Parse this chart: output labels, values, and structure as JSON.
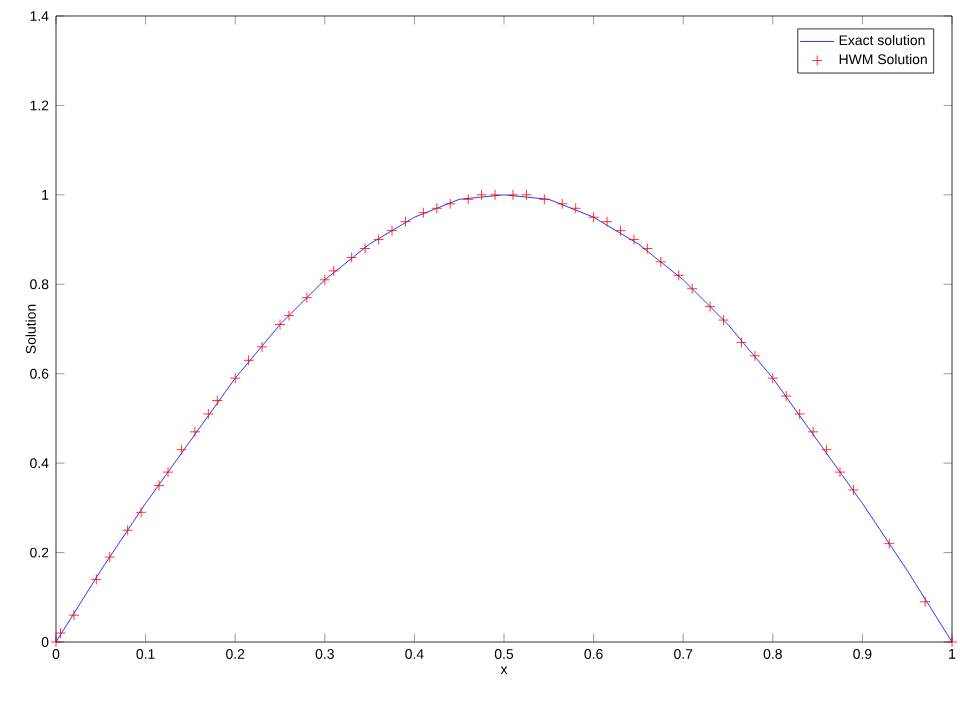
{
  "chart_data": {
    "type": "line",
    "xlabel": "x",
    "ylabel": "Solution",
    "xlim": [
      0,
      1
    ],
    "ylim": [
      0,
      1.4
    ],
    "xticks": [
      0,
      0.1,
      0.2,
      0.3,
      0.4,
      0.5,
      0.6,
      0.7,
      0.8,
      0.9,
      1
    ],
    "yticks": [
      0,
      0.2,
      0.4,
      0.6,
      0.8,
      1,
      1.2,
      1.4
    ],
    "legend": "top right",
    "grid": false,
    "series": [
      {
        "name": "Exact solution",
        "color": "#0000ff",
        "marker": "none",
        "line_style": "solid",
        "x": [
          0,
          0.05,
          0.1,
          0.15,
          0.2,
          0.25,
          0.3,
          0.35,
          0.4,
          0.45,
          0.5,
          0.55,
          0.6,
          0.65,
          0.7,
          0.75,
          0.8,
          0.85,
          0.9,
          0.95,
          1
        ],
        "values": [
          0,
          0.16,
          0.31,
          0.45,
          0.59,
          0.71,
          0.81,
          0.89,
          0.95,
          0.99,
          1,
          0.99,
          0.95,
          0.89,
          0.81,
          0.71,
          0.59,
          0.45,
          0.31,
          0.16,
          0
        ]
      },
      {
        "name": "HWM Solution",
        "type": "scatter",
        "color": "#ff0000",
        "marker": "cross",
        "x": [
          0,
          0.005,
          0.02,
          0.045,
          0.06,
          0.08,
          0.095,
          0.115,
          0.125,
          0.14,
          0.155,
          0.17,
          0.18,
          0.2,
          0.215,
          0.23,
          0.25,
          0.26,
          0.28,
          0.3,
          0.31,
          0.33,
          0.345,
          0.36,
          0.375,
          0.39,
          0.41,
          0.425,
          0.44,
          0.46,
          0.475,
          0.49,
          0.51,
          0.525,
          0.545,
          0.565,
          0.58,
          0.6,
          0.615,
          0.63,
          0.645,
          0.66,
          0.675,
          0.695,
          0.71,
          0.73,
          0.745,
          0.765,
          0.78,
          0.8,
          0.815,
          0.83,
          0.845,
          0.86,
          0.875,
          0.89,
          0.93,
          0.97,
          1
        ],
        "values": [
          0,
          0.02,
          0.06,
          0.14,
          0.19,
          0.25,
          0.29,
          0.35,
          0.38,
          0.43,
          0.47,
          0.51,
          0.54,
          0.59,
          0.63,
          0.66,
          0.71,
          0.73,
          0.77,
          0.81,
          0.83,
          0.86,
          0.88,
          0.9,
          0.92,
          0.94,
          0.96,
          0.97,
          0.98,
          0.99,
          1,
          1,
          1,
          1,
          0.99,
          0.98,
          0.97,
          0.95,
          0.94,
          0.92,
          0.9,
          0.88,
          0.85,
          0.82,
          0.79,
          0.75,
          0.72,
          0.67,
          0.64,
          0.59,
          0.55,
          0.51,
          0.47,
          0.43,
          0.38,
          0.34,
          0.22,
          0.09,
          0
        ]
      }
    ]
  }
}
